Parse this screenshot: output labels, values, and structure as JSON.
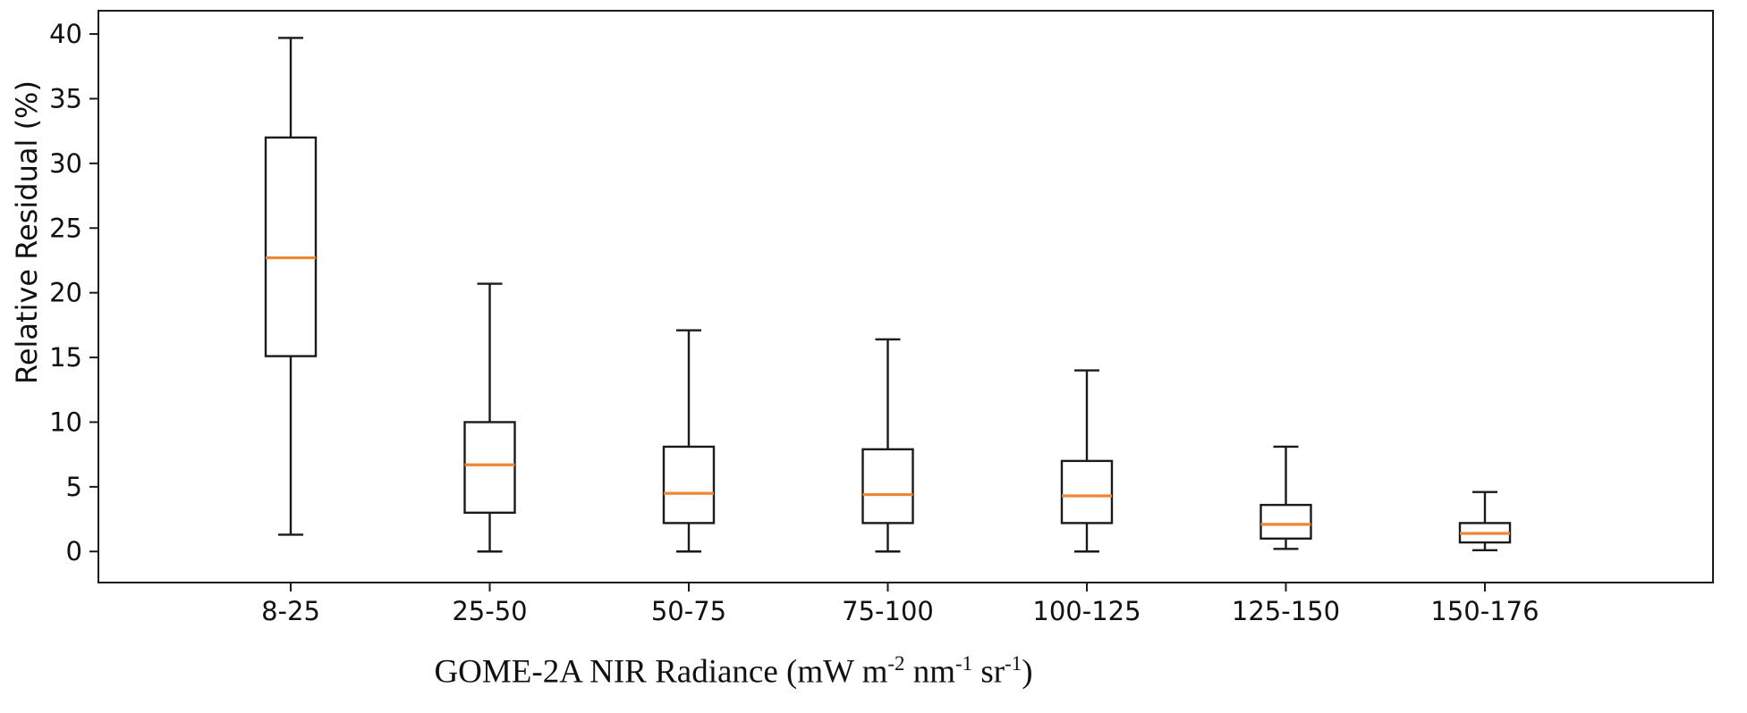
{
  "figure": {
    "background": "#ffffff"
  },
  "chart_data": {
    "type": "boxplot",
    "title": "",
    "ylabel": "Relative Residual (%)",
    "xlabel": "GOME-2A NIR Radiance (mW m-2 nm-1 sr-1)",
    "xlabel_segments": [
      {
        "t": "GOME-2A NIR Radiance (mW m"
      },
      {
        "t": "-2",
        "sup": true
      },
      {
        "t": " nm"
      },
      {
        "t": "-1",
        "sup": true
      },
      {
        "t": " sr"
      },
      {
        "t": "-1",
        "sup": true
      },
      {
        "t": ")"
      }
    ],
    "categories": [
      "8-25",
      "25-50",
      "50-75",
      "75-100",
      "100-125",
      "125-150",
      "150-176"
    ],
    "yticks": [
      0,
      5,
      10,
      15,
      20,
      25,
      30,
      35,
      40
    ],
    "ylim": [
      -2.4,
      41.8
    ],
    "grid": false,
    "legend": null,
    "colors": {
      "median": "#ef8636",
      "box": "#1a1a1a",
      "axis": "#1a1a1a",
      "text": "#111111",
      "box_fill": "#ffffff"
    },
    "boxes": [
      {
        "category": "8-25",
        "whisker_low": 1.3,
        "q1": 15.1,
        "median": 22.7,
        "q3": 32.0,
        "whisker_high": 39.7
      },
      {
        "category": "25-50",
        "whisker_low": 0.0,
        "q1": 3.0,
        "median": 6.7,
        "q3": 10.0,
        "whisker_high": 20.7
      },
      {
        "category": "50-75",
        "whisker_low": 0.0,
        "q1": 2.2,
        "median": 4.5,
        "q3": 8.1,
        "whisker_high": 17.1
      },
      {
        "category": "75-100",
        "whisker_low": 0.0,
        "q1": 2.2,
        "median": 4.4,
        "q3": 7.9,
        "whisker_high": 16.4
      },
      {
        "category": "100-125",
        "whisker_low": 0.0,
        "q1": 2.2,
        "median": 4.3,
        "q3": 7.0,
        "whisker_high": 14.0
      },
      {
        "category": "125-150",
        "whisker_low": 0.2,
        "q1": 1.0,
        "median": 2.1,
        "q3": 3.6,
        "whisker_high": 8.1
      },
      {
        "category": "150-176",
        "whisker_low": 0.1,
        "q1": 0.7,
        "median": 1.4,
        "q3": 2.2,
        "whisker_high": 4.6
      }
    ]
  }
}
